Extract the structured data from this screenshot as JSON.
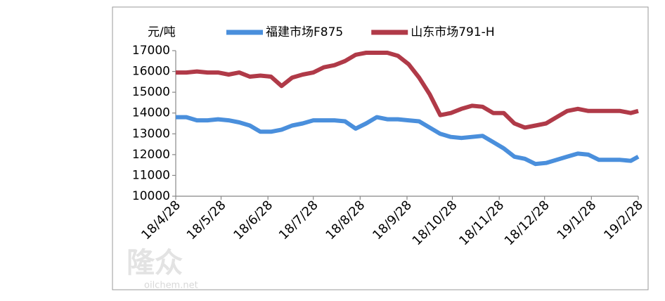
{
  "chart_data": {
    "type": "line",
    "y_label": "元/吨",
    "watermark": "隆众",
    "watermark_url": "oilchem.net",
    "x": [
      "18/4/28",
      "18/5/5",
      "18/5/12",
      "18/5/19",
      "18/5/26",
      "18/6/2",
      "18/6/9",
      "18/6/16",
      "18/6/23",
      "18/6/30",
      "18/7/7",
      "18/7/14",
      "18/7/21",
      "18/7/28",
      "18/8/4",
      "18/8/11",
      "18/8/18",
      "18/8/25",
      "18/9/1",
      "18/9/8",
      "18/9/15",
      "18/9/22",
      "18/9/29",
      "18/10/6",
      "18/10/13",
      "18/10/20",
      "18/10/27",
      "18/11/3",
      "18/11/10",
      "18/11/17",
      "18/11/24",
      "18/12/1",
      "18/12/8",
      "18/12/15",
      "18/12/22",
      "18/12/29",
      "19/1/5",
      "19/1/12",
      "19/1/19",
      "19/1/26",
      "19/2/2",
      "19/2/9",
      "19/2/16",
      "19/2/23",
      "19/2/28"
    ],
    "series": [
      {
        "name": "福建市场F875",
        "color": "#4a8fdc",
        "values": [
          13800,
          13800,
          13650,
          13650,
          13700,
          13650,
          13550,
          13400,
          13100,
          13100,
          13200,
          13400,
          13500,
          13650,
          13650,
          13650,
          13600,
          13250,
          13500,
          13800,
          13700,
          13700,
          13650,
          13600,
          13300,
          13000,
          12850,
          12800,
          12850,
          12900,
          12600,
          12300,
          11900,
          11800,
          11550,
          11600,
          11750,
          11900,
          12050,
          12000,
          11750,
          11750,
          11750,
          11700,
          11900
        ]
      },
      {
        "name": "山东市场791-H",
        "color": "#b03a48",
        "values": [
          15950,
          15950,
          16000,
          15950,
          15950,
          15850,
          15950,
          15750,
          15800,
          15750,
          15300,
          15700,
          15850,
          15950,
          16200,
          16300,
          16500,
          16800,
          16900,
          16900,
          16900,
          16750,
          16350,
          15700,
          14900,
          13900,
          14000,
          14200,
          14350,
          14300,
          14000,
          14000,
          13500,
          13300,
          13400,
          13500,
          13800,
          14100,
          14200,
          14100,
          14100,
          14100,
          14100,
          14000,
          14100
        ]
      }
    ],
    "xlim": [
      "18/4/28",
      "19/2/28"
    ],
    "xticks": [
      "18/4/28",
      "18/5/28",
      "18/6/28",
      "18/7/28",
      "18/8/28",
      "18/9/28",
      "18/10/28",
      "18/11/28",
      "18/12/28",
      "19/1/28",
      "19/2/28"
    ],
    "ylim": [
      10000,
      17000
    ],
    "yticks": [
      10000,
      11000,
      12000,
      13000,
      14000,
      15000,
      16000,
      17000
    ]
  }
}
